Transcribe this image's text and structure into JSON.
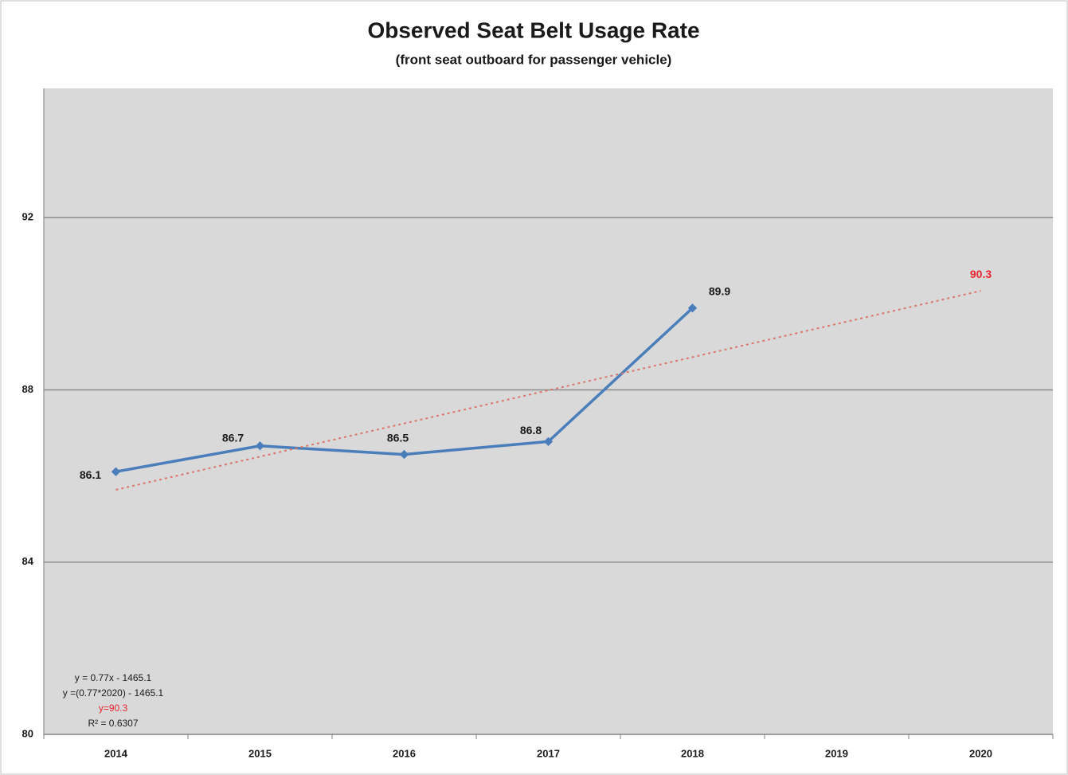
{
  "chart_data": {
    "type": "line",
    "title": "Observed Seat Belt Usage Rate",
    "subtitle": "(front seat outboard for passenger vehicle)",
    "categories": [
      "2014",
      "2015",
      "2016",
      "2017",
      "2018",
      "2019",
      "2020"
    ],
    "series": [
      {
        "color": "#4a7ebb",
        "values": [
          86.1,
          86.7,
          86.5,
          86.8,
          89.9,
          null,
          null
        ]
      },
      {
        "color": "#d9776a",
        "style": "dotted",
        "values": [
          85.68,
          86.45,
          87.22,
          87.99,
          88.76,
          89.53,
          90.3
        ]
      }
    ],
    "ylim": [
      80,
      95
    ],
    "yticks": [
      80,
      84,
      88,
      92
    ],
    "grid": true,
    "annotations": [
      {
        "text": "y = 0.77x - 1465.1",
        "color": "#1a1a1a"
      },
      {
        "text": "y =(0.77*2020) - 1465.1",
        "color": "#1a1a1a"
      },
      {
        "text": "y=90.3",
        "color": "#e8262d"
      },
      {
        "text": "R² = 0.6307",
        "color": "#1a1a1a"
      }
    ]
  }
}
